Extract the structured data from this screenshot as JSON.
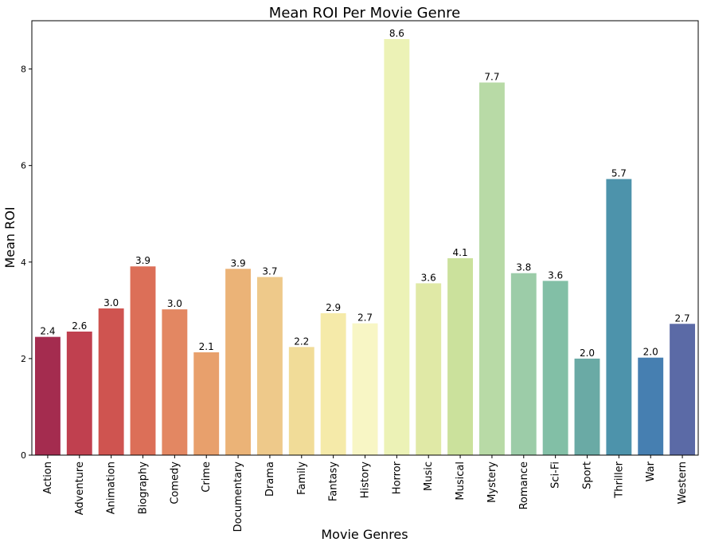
{
  "chart_data": {
    "type": "bar",
    "title": "Mean ROI Per Movie Genre",
    "xlabel": "Movie Genres",
    "ylabel": "Mean ROI",
    "ylim": [
      0,
      9
    ],
    "yticks": [
      "0",
      "2",
      "4",
      "6",
      "8"
    ],
    "grid": false,
    "categories": [
      "Action",
      "Adventure",
      "Animation",
      "Biography",
      "Comedy",
      "Crime",
      "Documentary",
      "Drama",
      "Family",
      "Fantasy",
      "History",
      "Horror",
      "Music",
      "Musical",
      "Mystery",
      "Romance",
      "Sci-Fi",
      "Sport",
      "Thriller",
      "War",
      "Western"
    ],
    "values": [
      2.45,
      2.56,
      3.04,
      3.91,
      3.02,
      2.13,
      3.86,
      3.69,
      2.24,
      2.94,
      2.73,
      8.62,
      3.56,
      4.08,
      7.72,
      3.77,
      3.61,
      2.0,
      5.72,
      2.02,
      2.72
    ],
    "value_labels": [
      "2.4",
      "2.6",
      "3.0",
      "3.9",
      "3.0",
      "2.1",
      "3.9",
      "3.7",
      "2.2",
      "2.9",
      "2.7",
      "8.6",
      "3.6",
      "4.1",
      "7.7",
      "3.8",
      "3.6",
      "2.0",
      "5.7",
      "2.0",
      "2.7"
    ],
    "colors": [
      "#a42c4f",
      "#c0404f",
      "#cf5450",
      "#dc6f58",
      "#e38762",
      "#e8a06c",
      "#ebb377",
      "#eec98a",
      "#f1dc98",
      "#f5eaa9",
      "#f8f6c5",
      "#ecf2b6",
      "#e0e9a6",
      "#cbe19c",
      "#b8da a6",
      "#9ccca8",
      "#82bfa6",
      "#6aaaa5",
      "#4d93ab",
      "#467fb1",
      "#5b6aa6"
    ]
  }
}
